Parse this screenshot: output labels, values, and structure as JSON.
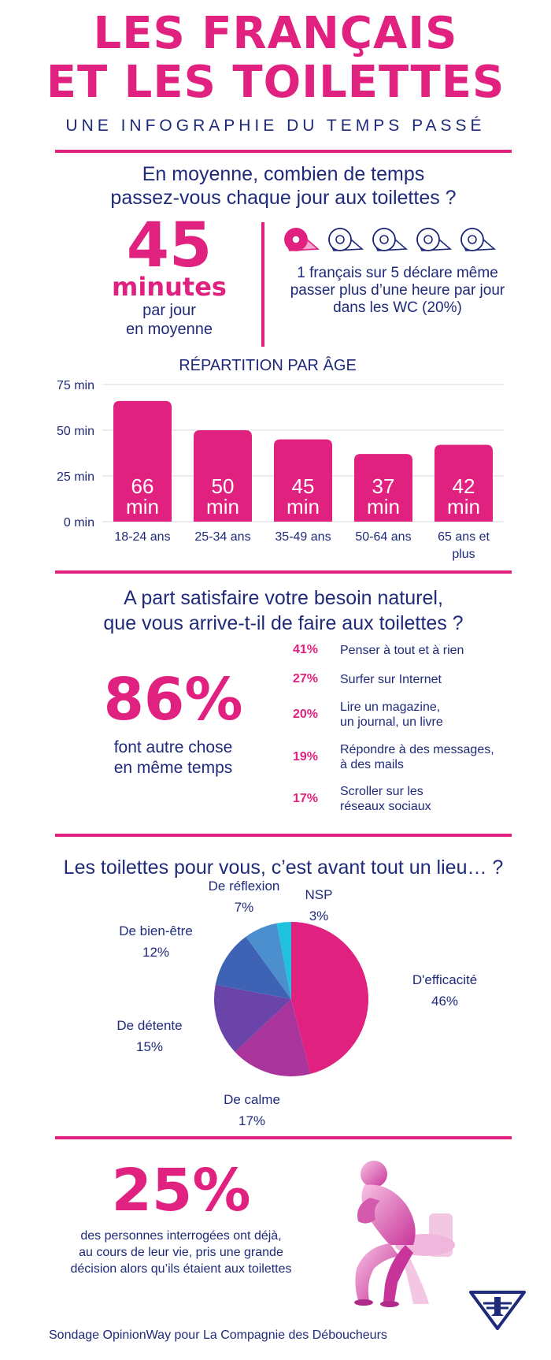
{
  "header": {
    "title_line1": "LES FRANÇAIS",
    "title_line2": "ET LES TOILETTES",
    "subtitle": "UNE INFOGRAPHIE DU TEMPS PASSÉ"
  },
  "time_section": {
    "question_line1": "En moyenne, combien de temps",
    "question_line2": "passez-vous chaque jour aux toilettes ?",
    "big_number": "45",
    "big_unit": "minutes",
    "caption_line1": "par jour",
    "caption_line2": "en moyenne",
    "rolls_highlighted": 1,
    "rolls_total": 5,
    "note_line1": "1 français sur 5 déclare même",
    "note_line2": "passer plus d’une heure par jour",
    "note_line3": "dans les WC (20%)"
  },
  "chart_data": [
    {
      "type": "bar",
      "title": "RÉPARTITION PAR ÂGE",
      "categories": [
        "18-24 ans",
        "25-34 ans",
        "35-49 ans",
        "50-64 ans",
        "65 ans et plus"
      ],
      "category_lines": [
        [
          "18-24 ans"
        ],
        [
          "25-34 ans"
        ],
        [
          "35-49 ans"
        ],
        [
          "50-64 ans"
        ],
        [
          "65 ans et",
          "plus"
        ]
      ],
      "values": [
        66,
        50,
        45,
        37,
        42
      ],
      "value_labels": [
        [
          "66",
          "min"
        ],
        [
          "50",
          "min"
        ],
        [
          "45",
          "min"
        ],
        [
          "37",
          "min"
        ],
        [
          "42",
          "min"
        ]
      ],
      "ylim": [
        0,
        75
      ],
      "yticks": [
        0,
        25,
        50,
        75
      ],
      "ytick_labels": [
        "0 min",
        "25 min",
        "50 min",
        "75 min"
      ],
      "grid": true,
      "color": "#e0217f"
    },
    {
      "type": "pie",
      "title": "Les toilettes pour vous, c’est avant tout un lieu… ?",
      "labels": [
        "D'efficacité",
        "De calme",
        "De détente",
        "De bien-être",
        "De réflexion",
        "NSP"
      ],
      "values": [
        46,
        17,
        15,
        12,
        7,
        3
      ],
      "value_labels": [
        "46%",
        "17%",
        "15%",
        "12%",
        "7%",
        "3%"
      ],
      "colors": [
        "#e0217f",
        "#a9349b",
        "#6a44a8",
        "#3f63b4",
        "#4c8fcf",
        "#1fc1de"
      ]
    }
  ],
  "activities_section": {
    "question_line1": "A part satisfaire votre besoin naturel,",
    "question_line2": "que vous arrive-t-il de faire aux toilettes ?",
    "big_percent": "86%",
    "caption_line1": "font autre chose",
    "caption_line2": "en même temps",
    "items": [
      {
        "pct": "41%",
        "lines": [
          "Penser à tout et à rien"
        ]
      },
      {
        "pct": "27%",
        "lines": [
          "Surfer sur Internet"
        ]
      },
      {
        "pct": "20%",
        "lines": [
          "Lire un magazine,",
          " un journal, un livre"
        ]
      },
      {
        "pct": "19%",
        "lines": [
          "Répondre à des messages,",
          "à des mails"
        ]
      },
      {
        "pct": "17%",
        "lines": [
          "Scroller sur les",
          "réseaux sociaux"
        ]
      }
    ]
  },
  "decision_section": {
    "big_percent": "25%",
    "text_line1": "des personnes interrogées ont déjà,",
    "text_line2": "au cours de leur vie, pris une grande",
    "text_line3": "décision alors qu’ils étaient aux toilettes"
  },
  "footer": {
    "source": "Sondage OpinionWay pour La Compagnie des Déboucheurs"
  }
}
